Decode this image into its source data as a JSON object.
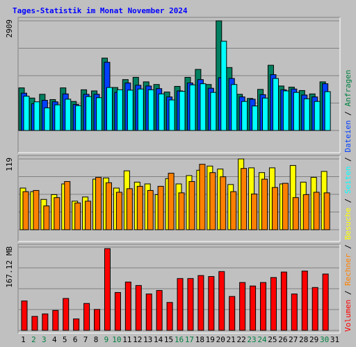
{
  "chart_data": {
    "type": "bar",
    "title": "Tages-Statistik im Monat November 2024",
    "categories": [
      "1",
      "2",
      "3",
      "4",
      "5",
      "6",
      "7",
      "8",
      "9",
      "10",
      "11",
      "12",
      "13",
      "14",
      "15",
      "16",
      "17",
      "18",
      "19",
      "20",
      "21",
      "22",
      "23",
      "24",
      "25",
      "26",
      "27",
      "28",
      "29",
      "30",
      "31"
    ],
    "weekend_days": [
      "2",
      "3",
      "9",
      "10",
      "16",
      "17",
      "23",
      "24",
      "30"
    ],
    "day_colors": {
      "weekday": "#000000",
      "weekend": "#008040"
    },
    "legend": {
      "orientation": "vertical-right",
      "items": [
        {
          "label": "Volumen",
          "color": "#ff0000"
        },
        {
          "label": "Rechner",
          "color": "#ff8000"
        },
        {
          "label": "Besuche",
          "color": "#ffff00"
        },
        {
          "label": "Seiten",
          "color": "#00ffff"
        },
        {
          "label": "Dateien",
          "color": "#0040ff"
        },
        {
          "label": "Anfragen",
          "color": "#008040"
        }
      ],
      "separator": " / "
    },
    "panels": [
      {
        "id": "hits",
        "ymax": 2909,
        "ymax_label": "2909",
        "grid": true,
        "series": [
          {
            "name": "Anfragen",
            "color": "#008060",
            "values": [
              1130,
              860,
              960,
              820,
              1130,
              770,
              1080,
              1050,
              1920,
              1140,
              1350,
              1410,
              1290,
              1220,
              1020,
              1170,
              1410,
              1620,
              1220,
              2909,
              1670,
              960,
              850,
              1090,
              1730,
              1180,
              1150,
              1060,
              970,
              1290,
              null
            ]
          },
          {
            "name": "Dateien",
            "color": "#0040ff",
            "values": [
              990,
              710,
              800,
              760,
              970,
              690,
              960,
              960,
              1810,
              1010,
              1260,
              1200,
              1180,
              1110,
              890,
              1050,
              1260,
              1350,
              1120,
              1400,
              1380,
              890,
              830,
              950,
              1480,
              1080,
              1100,
              940,
              890,
              1240,
              null
            ]
          },
          {
            "name": "Seiten",
            "color": "#00ffff",
            "values": [
              910,
              760,
              600,
              680,
              830,
              660,
              900,
              870,
              1140,
              1080,
              1070,
              1100,
              1080,
              970,
              810,
              1040,
              1210,
              1240,
              1010,
              2370,
              1220,
              770,
              650,
              860,
              1380,
              1050,
              1010,
              840,
              770,
              1030,
              null
            ]
          }
        ]
      },
      {
        "id": "visits",
        "ymax": 119,
        "ymax_label": "119",
        "grid": true,
        "series": [
          {
            "name": "Besuche",
            "color": "#ffff00",
            "values": [
              70,
              64,
              51,
              59,
              77,
              48,
              55,
              85,
              87,
              70,
              99,
              80,
              77,
              59,
              86,
              77,
              91,
              100,
              107,
              102,
              76,
              119,
              104,
              96,
              104,
              77,
              108,
              80,
              88,
              98,
              null
            ]
          },
          {
            "name": "Rechner",
            "color": "#ff8000",
            "values": [
              64,
              66,
              40,
              54,
              81,
              45,
              48,
              88,
              79,
              63,
              69,
              73,
              66,
              73,
              95,
              62,
              81,
              110,
              96,
              89,
              64,
              103,
              60,
              85,
              71,
              78,
              54,
              59,
              63,
              62,
              null
            ]
          }
        ]
      },
      {
        "id": "volume",
        "ymax": 167.12,
        "ymax_label": "167.12 MB",
        "grid": true,
        "series": [
          {
            "name": "Volumen",
            "color": "#ff0000",
            "values": [
              59,
              28,
              33,
              40,
              64,
              23,
              54,
              42,
              164,
              76,
              97,
              90,
              73,
              80,
              56,
              104,
              104,
              110,
              108,
              118,
              68,
              96,
              89,
              96,
              106,
              117,
              73,
              119,
              86,
              113,
              null
            ]
          }
        ]
      }
    ]
  }
}
